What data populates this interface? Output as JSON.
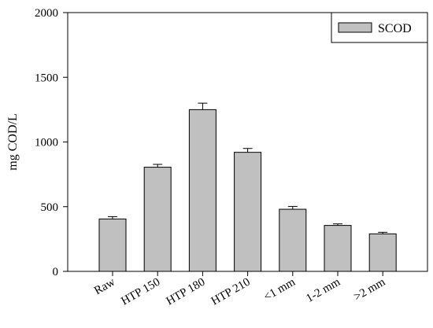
{
  "chart_data": {
    "type": "bar",
    "title": "",
    "xlabel": "",
    "ylabel": "mg COD/L",
    "ylim": [
      0,
      2000
    ],
    "yticks": [
      0,
      500,
      1000,
      1500,
      2000
    ],
    "grid": false,
    "legend_position": "top-right",
    "categories": [
      "Raw",
      "HTP 150",
      "HTP 180",
      "HTP 210",
      "<1 mm",
      "1-2 mm",
      ">2 mm"
    ],
    "series": [
      {
        "name": "SCOD",
        "color": "#c0c0c0",
        "values": [
          405,
          805,
          1250,
          920,
          480,
          355,
          290
        ],
        "errors": [
          18,
          22,
          50,
          30,
          22,
          12,
          12
        ]
      }
    ]
  }
}
